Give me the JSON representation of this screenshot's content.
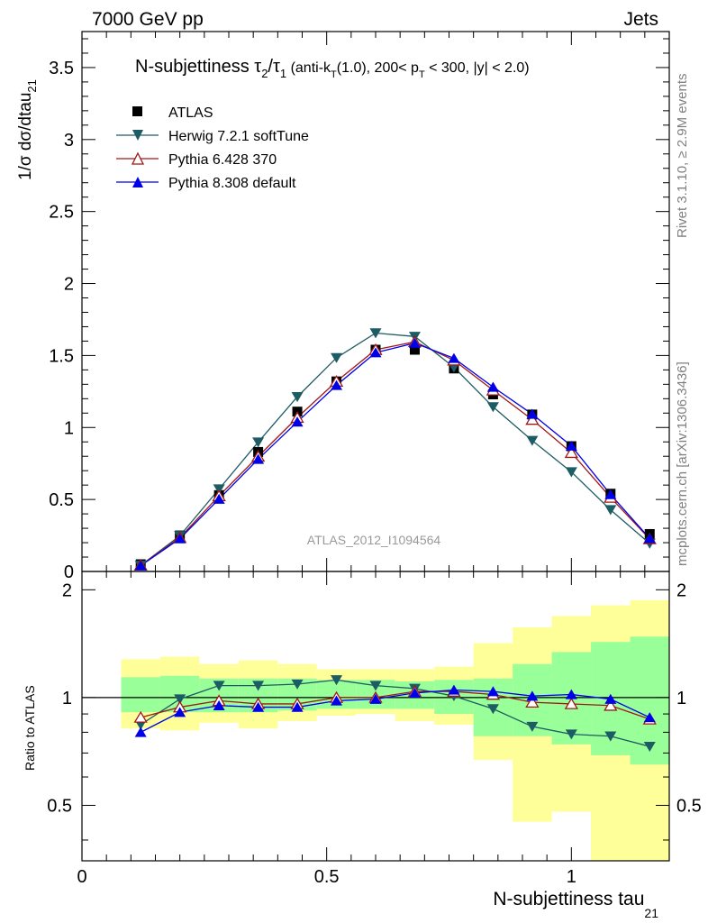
{
  "header": {
    "left": "7000 GeV pp",
    "right": "Jets"
  },
  "side_labels": {
    "rivet": "Rivet 3.1.10, ≥ 2.9M events",
    "mcplots": "mcplots.cern.ch [arXiv:1306.3436]"
  },
  "chart_data": {
    "type": "line",
    "title": "N-subjettiness τ₂/τ₁ (anti-k_T(1.0), 200< p_T < 300, |y| < 2.0)",
    "title_parts": {
      "main": "N-subjettiness τ",
      "sub1": "2",
      "slash": "/τ",
      "sub2": "1",
      "small_a": " (anti-k",
      "sub3": "T",
      "small_b": "(1.0), 200< p",
      "sub4": "T",
      "small_c": " < 300, |y| < 2.0)"
    },
    "watermark": "ATLAS_2012_I1094564",
    "xlabel": "N-subjettiness tau",
    "xlabel_sub": "21",
    "ylabel": "1/σ dσ/dtau",
    "ylabel_sub": "21",
    "ratio_ylabel": "Ratio to ATLAS",
    "xlim": [
      0,
      1.2
    ],
    "ylim": [
      0,
      3.75
    ],
    "ratio_ylim": [
      0.35,
      2.25
    ],
    "log_ratio": true,
    "x_ticks": [
      "0",
      "0.5",
      "1"
    ],
    "y_ticks": [
      "0",
      "0.5",
      "1",
      "1.5",
      "2",
      "2.5",
      "3",
      "3.5"
    ],
    "ratio_ticks": [
      "0.5",
      "1",
      "2"
    ],
    "legend_position": "top-left",
    "x": [
      0.12,
      0.2,
      0.28,
      0.36,
      0.44,
      0.52,
      0.6,
      0.68,
      0.76,
      0.84,
      0.92,
      1.0,
      1.08,
      1.16
    ],
    "bin_edges": [
      0.08,
      0.16,
      0.24,
      0.32,
      0.4,
      0.48,
      0.56,
      0.64,
      0.72,
      0.8,
      0.88,
      0.96,
      1.04,
      1.12,
      1.2
    ],
    "data": {
      "name": "ATLAS",
      "values": [
        0.05,
        0.25,
        0.53,
        0.83,
        1.11,
        1.32,
        1.54,
        1.54,
        1.41,
        1.23,
        1.09,
        0.87,
        0.54,
        0.26
      ],
      "band_inner": [
        [
          0.91,
          1.14
        ],
        [
          0.91,
          1.15
        ],
        [
          0.91,
          1.13
        ],
        [
          0.91,
          1.13
        ],
        [
          0.92,
          1.13
        ],
        [
          0.93,
          1.12
        ],
        [
          0.93,
          1.12
        ],
        [
          0.93,
          1.11
        ],
        [
          0.9,
          1.12
        ],
        [
          0.78,
          1.13
        ],
        [
          0.78,
          1.24
        ],
        [
          0.74,
          1.34
        ],
        [
          0.69,
          1.43
        ],
        [
          0.65,
          1.48
        ]
      ],
      "band_outer": [
        [
          0.82,
          1.28
        ],
        [
          0.81,
          1.3
        ],
        [
          0.85,
          1.24
        ],
        [
          0.82,
          1.27
        ],
        [
          0.86,
          1.24
        ],
        [
          0.89,
          1.2
        ],
        [
          0.9,
          1.2
        ],
        [
          0.86,
          1.2
        ],
        [
          0.84,
          1.22
        ],
        [
          0.67,
          1.42
        ],
        [
          0.45,
          1.57
        ],
        [
          0.48,
          1.69
        ],
        [
          0.35,
          1.81
        ],
        [
          0.35,
          1.87
        ]
      ]
    },
    "series": [
      {
        "name": "Herwig 7.2.1 softTune",
        "color": "#1d5c64",
        "marker": "triangle-down-filled",
        "values": [
          0.042,
          0.248,
          0.572,
          0.898,
          1.213,
          1.484,
          1.656,
          1.632,
          1.418,
          1.143,
          0.909,
          0.691,
          0.428,
          0.194
        ],
        "ratio": [
          0.84,
          0.99,
          1.08,
          1.08,
          1.09,
          1.12,
          1.08,
          1.06,
          1.01,
          0.93,
          0.83,
          0.79,
          0.78,
          0.73
        ]
      },
      {
        "name": "Pythia 6.428 370",
        "color": "#a01818",
        "marker": "triangle-up-open",
        "values": [
          0.044,
          0.235,
          0.525,
          0.799,
          1.069,
          1.32,
          1.54,
          1.595,
          1.467,
          1.259,
          1.055,
          0.825,
          0.514,
          0.226
        ],
        "ratio": [
          0.88,
          0.94,
          0.98,
          0.96,
          0.96,
          1.0,
          1.0,
          1.04,
          1.04,
          1.02,
          0.97,
          0.96,
          0.95,
          0.87
        ]
      },
      {
        "name": "Pythia 8.308 default",
        "color": "#0000e8",
        "marker": "triangle-up-filled",
        "values": [
          0.04,
          0.228,
          0.503,
          0.78,
          1.039,
          1.293,
          1.52,
          1.586,
          1.481,
          1.281,
          1.093,
          0.872,
          0.535,
          0.23
        ],
        "ratio": [
          0.8,
          0.91,
          0.95,
          0.94,
          0.94,
          0.98,
          0.99,
          1.03,
          1.05,
          1.04,
          1.01,
          1.02,
          0.99,
          0.88
        ]
      }
    ]
  }
}
